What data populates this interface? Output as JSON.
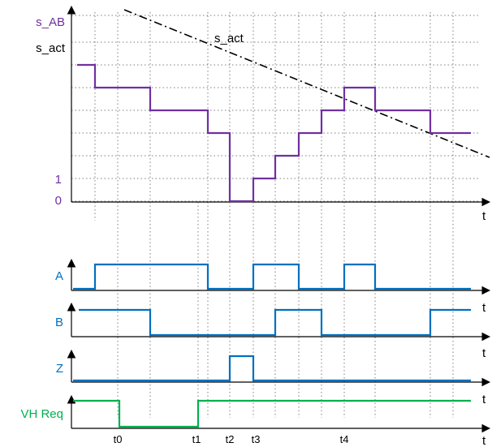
{
  "labels": {
    "s_ab": "s_AB",
    "s_act_axis": "s_act",
    "s_act_line": "s_act",
    "one": "1",
    "zero": "0",
    "a": "A",
    "b": "B",
    "z": "Z",
    "vh_req": "VH Req"
  },
  "time_axis_label": "t",
  "time_marks": [
    "t0",
    "t1",
    "t2",
    "t3",
    "t4"
  ],
  "colors": {
    "s_ab": "#7030a0",
    "encoder": "#0070c0",
    "vh_req": "#00b050",
    "s_act": "#000000"
  }
}
